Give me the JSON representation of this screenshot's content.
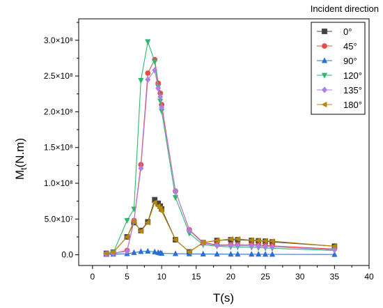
{
  "chart_data": {
    "type": "line",
    "ylabel_main": "M",
    "ylabel_sub": "t",
    "ylabel_unit": "(N.m)",
    "xlabel": "T(s)",
    "legend_title": "Incident direction",
    "legend_position": "top-right",
    "grid": false,
    "xlim": [
      -2,
      40
    ],
    "ylim": [
      -15000000,
      330000000
    ],
    "x_ticks": [
      0,
      5,
      10,
      15,
      20,
      25,
      30,
      35,
      40
    ],
    "x_tick_labels": [
      "0",
      "5",
      "10",
      "15",
      "20",
      "25",
      "30",
      "35",
      "40"
    ],
    "y_ticks": [
      0,
      50000000,
      100000000,
      150000000,
      200000000,
      250000000,
      300000000
    ],
    "y_tick_labels": [
      "0.0",
      "5.0×10⁷",
      "1.0×10⁸",
      "1.5×10⁸",
      "2.0×10⁸",
      "2.5×10⁸",
      "3.0×10⁸"
    ],
    "series": [
      {
        "name": "0°",
        "color": "#444444",
        "marker": "square",
        "x": [
          2,
          3,
          5,
          6,
          7,
          8,
          9,
          9.5,
          9.8,
          10,
          12,
          14,
          16,
          18,
          20,
          21,
          23,
          24,
          25,
          26,
          35
        ],
        "y": [
          2000000,
          3500000,
          25000000,
          45000000,
          34000000,
          46000000,
          77000000,
          72000000,
          68000000,
          64000000,
          21000000,
          4000000,
          17000000,
          20000000,
          21000000,
          21000000,
          20000000,
          19500000,
          19000000,
          18000000,
          12000000
        ]
      },
      {
        "name": "45°",
        "color": "#e84a4a",
        "marker": "circle",
        "x": [
          2,
          3,
          5,
          6,
          7,
          8,
          9,
          9.5,
          9.8,
          10,
          12,
          14,
          16,
          18,
          20,
          21,
          23,
          24,
          25,
          26,
          35
        ],
        "y": [
          1000000,
          2000000,
          6000000,
          48000000,
          126000000,
          254000000,
          273000000,
          240000000,
          226000000,
          210000000,
          89000000,
          35000000,
          17000000,
          14000000,
          14000000,
          14000000,
          14000000,
          13500000,
          13000000,
          12500000,
          8000000
        ]
      },
      {
        "name": "90°",
        "color": "#2a6fd6",
        "marker": "triangle-up",
        "x": [
          2,
          3,
          5,
          6,
          7,
          8,
          9,
          9.5,
          9.8,
          10,
          12,
          14,
          16,
          18,
          20,
          21,
          23,
          24,
          25,
          26,
          35
        ],
        "y": [
          500000,
          800000,
          1500000,
          3000000,
          4500000,
          5000000,
          4000000,
          3000000,
          2500000,
          2000000,
          1500000,
          1200000,
          1000000,
          900000,
          800000,
          800000,
          700000,
          700000,
          650000,
          600000,
          400000
        ]
      },
      {
        "name": "120°",
        "color": "#2eb86b",
        "marker": "triangle-down",
        "x": [
          2,
          3,
          5,
          6,
          7,
          8,
          9,
          9.5,
          9.8,
          10,
          12,
          14,
          16,
          18,
          20,
          21,
          23,
          24,
          25,
          26,
          35
        ],
        "y": [
          1000000,
          3000000,
          48000000,
          64000000,
          244000000,
          298000000,
          270000000,
          235000000,
          215000000,
          201000000,
          80000000,
          30000000,
          14000000,
          12000000,
          11000000,
          11000000,
          10500000,
          10000000,
          9500000,
          9000000,
          6000000
        ]
      },
      {
        "name": "135°",
        "color": "#b07fe3",
        "marker": "diamond",
        "x": [
          2,
          3,
          5,
          6,
          7,
          8,
          9,
          9.5,
          9.8,
          10,
          12,
          14,
          16,
          18,
          20,
          21,
          23,
          24,
          25,
          26,
          35
        ],
        "y": [
          1000000,
          2000000,
          5000000,
          47000000,
          121000000,
          245000000,
          258000000,
          233000000,
          221000000,
          206000000,
          89000000,
          34000000,
          16000000,
          13000000,
          13000000,
          13000000,
          12500000,
          12000000,
          11500000,
          11000000,
          7000000
        ]
      },
      {
        "name": "180°",
        "color": "#b8860b",
        "marker": "triangle-left",
        "x": [
          2,
          3,
          5,
          6,
          7,
          8,
          9,
          9.5,
          9.8,
          10,
          12,
          14,
          16,
          18,
          20,
          21,
          23,
          24,
          25,
          26,
          35
        ],
        "y": [
          2000000,
          3500000,
          25000000,
          47000000,
          33000000,
          45000000,
          73000000,
          68000000,
          65000000,
          61000000,
          21000000,
          4000000,
          17000000,
          20000000,
          22000000,
          22000000,
          20500000,
          20000000,
          19500000,
          19000000,
          12000000
        ]
      }
    ]
  }
}
